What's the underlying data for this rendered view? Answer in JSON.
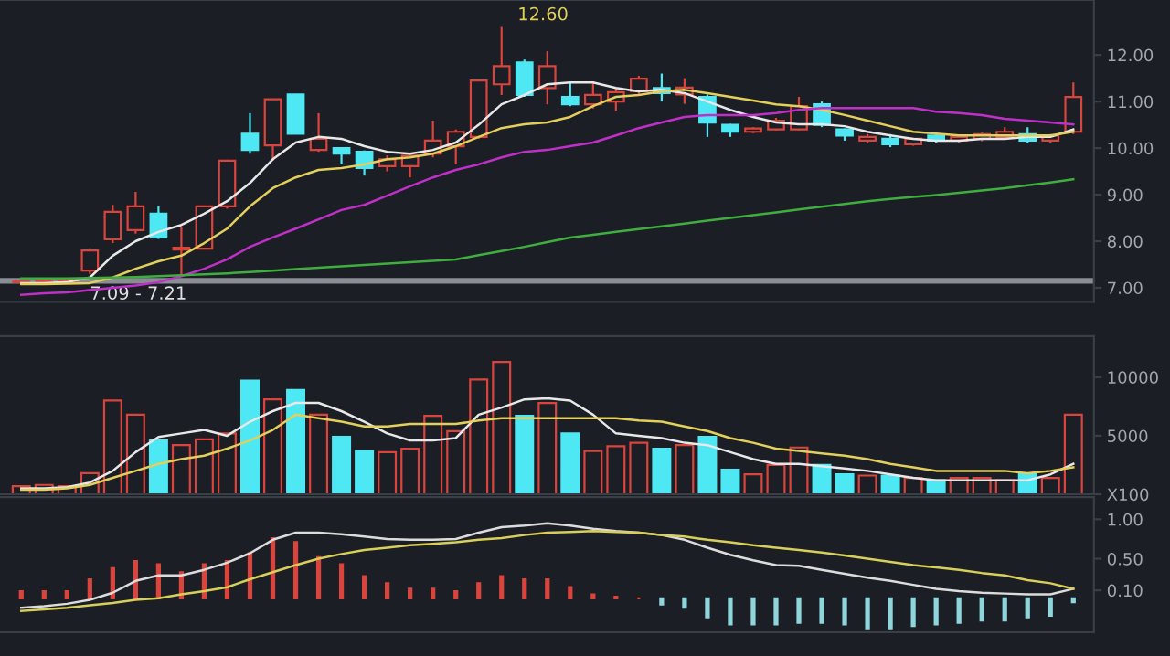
{
  "chart_data": [
    {
      "type": "candlestick",
      "categories": [
        null,
        null,
        null,
        null,
        null,
        null,
        null,
        null,
        null,
        null,
        null,
        null,
        null,
        null,
        null,
        null,
        null,
        null,
        null,
        null,
        null,
        null,
        null,
        null,
        null,
        null,
        null,
        null,
        null,
        null,
        null,
        null,
        null,
        null,
        null,
        null,
        null,
        null,
        null,
        null,
        null,
        null,
        null,
        null,
        null,
        null,
        null
      ],
      "ohlc": [
        [
          7.12,
          7.16,
          7.09,
          7.14
        ],
        [
          7.13,
          7.18,
          7.1,
          7.15
        ],
        [
          7.13,
          7.21,
          7.09,
          7.18
        ],
        [
          7.37,
          7.85,
          7.3,
          7.8
        ],
        [
          8.04,
          8.78,
          7.96,
          8.63
        ],
        [
          8.24,
          9.06,
          8.16,
          8.75
        ],
        [
          8.59,
          8.75,
          8.05,
          8.08
        ],
        [
          7.82,
          8.31,
          7.29,
          7.86
        ],
        [
          7.84,
          8.75,
          7.84,
          8.75
        ],
        [
          8.75,
          9.75,
          8.7,
          9.73
        ],
        [
          10.31,
          10.75,
          9.88,
          9.96
        ],
        [
          10.06,
          11.05,
          9.73,
          11.05
        ],
        [
          11.15,
          11.15,
          10.31,
          10.31
        ],
        [
          9.96,
          10.75,
          9.92,
          10.2
        ],
        [
          10.0,
          10.02,
          9.65,
          9.88
        ],
        [
          9.92,
          9.95,
          9.41,
          9.57
        ],
        [
          9.61,
          9.84,
          9.5,
          9.76
        ],
        [
          9.61,
          9.88,
          9.37,
          9.84
        ],
        [
          9.88,
          10.59,
          9.8,
          10.16
        ],
        [
          10.04,
          10.4,
          9.65,
          10.35
        ],
        [
          10.24,
          11.45,
          10.2,
          11.45
        ],
        [
          11.37,
          12.6,
          11.14,
          11.76
        ],
        [
          11.84,
          11.9,
          11.1,
          11.14
        ],
        [
          11.29,
          12.08,
          10.94,
          11.76
        ],
        [
          11.1,
          11.4,
          10.9,
          10.94
        ],
        [
          10.94,
          11.4,
          10.85,
          11.14
        ],
        [
          11.0,
          11.3,
          10.8,
          11.2
        ],
        [
          11.22,
          11.55,
          11.15,
          11.49
        ],
        [
          11.29,
          11.6,
          11.0,
          11.18
        ],
        [
          11.15,
          11.5,
          10.95,
          11.3
        ],
        [
          11.1,
          11.15,
          10.24,
          10.55
        ],
        [
          10.5,
          10.52,
          10.24,
          10.35
        ],
        [
          10.35,
          10.45,
          10.32,
          10.42
        ],
        [
          10.4,
          10.65,
          10.38,
          10.59
        ],
        [
          10.4,
          11.1,
          10.38,
          10.9
        ],
        [
          10.94,
          11.0,
          10.45,
          10.5
        ],
        [
          10.4,
          10.42,
          10.16,
          10.27
        ],
        [
          10.16,
          10.3,
          10.12,
          10.24
        ],
        [
          10.2,
          10.3,
          10.02,
          10.08
        ],
        [
          10.08,
          10.22,
          10.05,
          10.2
        ],
        [
          10.27,
          10.3,
          10.12,
          10.16
        ],
        [
          10.16,
          10.27,
          10.12,
          10.24
        ],
        [
          10.2,
          10.33,
          10.15,
          10.3
        ],
        [
          10.24,
          10.45,
          10.2,
          10.35
        ],
        [
          10.3,
          10.45,
          10.1,
          10.16
        ],
        [
          10.16,
          10.3,
          10.12,
          10.27
        ],
        [
          10.35,
          11.41,
          10.3,
          11.1
        ]
      ],
      "colors": [
        "#d9453d",
        "#d9453d",
        "#d9453d",
        "#d9453d",
        "#d9453d",
        "#d9453d",
        "#4de8f4",
        "#d9453d",
        "#d9453d",
        "#d9453d",
        "#4de8f4",
        "#d9453d",
        "#4de8f4",
        "#d9453d",
        "#4de8f4",
        "#4de8f4",
        "#d9453d",
        "#d9453d",
        "#d9453d",
        "#d9453d",
        "#d9453d",
        "#d9453d",
        "#4de8f4",
        "#d9453d",
        "#4de8f4",
        "#d9453d",
        "#d9453d",
        "#d9453d",
        "#4de8f4",
        "#d9453d",
        "#4de8f4",
        "#4de8f4",
        "#d9453d",
        "#d9453d",
        "#d9453d",
        "#4de8f4",
        "#4de8f4",
        "#d9453d",
        "#4de8f4",
        "#d9453d",
        "#4de8f4",
        "#d9453d",
        "#d9453d",
        "#d9453d",
        "#4de8f4",
        "#d9453d",
        "#d9453d"
      ],
      "series": [
        {
          "type": "line",
          "color": "#e8e8e8",
          "values": [
            7.1,
            7.1,
            7.12,
            7.22,
            7.69,
            8.0,
            8.2,
            8.35,
            8.59,
            8.86,
            9.25,
            9.76,
            10.12,
            10.24,
            10.2,
            10.04,
            9.92,
            9.88,
            9.96,
            10.12,
            10.5,
            10.94,
            11.14,
            11.37,
            11.41,
            11.41,
            11.29,
            11.22,
            11.25,
            11.18,
            11.0,
            10.82,
            10.67,
            10.55,
            10.51,
            10.51,
            10.47,
            10.35,
            10.27,
            10.2,
            10.16,
            10.16,
            10.2,
            10.2,
            10.24,
            10.24,
            10.4
          ]
        },
        {
          "type": "line",
          "color": "#e3cf5c",
          "values": [
            7.08,
            7.08,
            7.09,
            7.1,
            7.22,
            7.41,
            7.57,
            7.69,
            7.96,
            8.27,
            8.75,
            9.14,
            9.37,
            9.53,
            9.57,
            9.65,
            9.76,
            9.8,
            9.88,
            10.04,
            10.24,
            10.43,
            10.51,
            10.55,
            10.67,
            10.9,
            11.1,
            11.14,
            11.22,
            11.25,
            11.18,
            11.1,
            11.02,
            10.94,
            10.9,
            10.82,
            10.71,
            10.59,
            10.47,
            10.35,
            10.31,
            10.27,
            10.27,
            10.27,
            10.27,
            10.27,
            10.35
          ]
        },
        {
          "type": "line",
          "color": "#c030c8",
          "values": [
            6.85,
            6.88,
            6.9,
            6.95,
            7.0,
            7.05,
            7.12,
            7.25,
            7.41,
            7.61,
            7.88,
            8.08,
            8.27,
            8.47,
            8.67,
            8.78,
            8.98,
            9.18,
            9.37,
            9.53,
            9.65,
            9.8,
            9.92,
            9.96,
            10.04,
            10.12,
            10.27,
            10.43,
            10.55,
            10.67,
            10.71,
            10.71,
            10.71,
            10.75,
            10.82,
            10.86,
            10.86,
            10.86,
            10.86,
            10.86,
            10.78,
            10.75,
            10.71,
            10.63,
            10.59,
            10.55,
            10.51
          ]
        },
        {
          "type": "line",
          "color": "#3fae3f",
          "values": [
            7.2,
            7.2,
            7.2,
            7.21,
            7.22,
            7.23,
            7.25,
            7.27,
            7.29,
            7.31,
            7.34,
            7.37,
            7.4,
            7.43,
            7.46,
            7.49,
            7.52,
            7.55,
            7.58,
            7.61,
            7.7,
            7.79,
            7.88,
            7.98,
            8.08,
            8.14,
            8.2,
            8.26,
            8.32,
            8.38,
            8.44,
            8.5,
            8.56,
            8.62,
            8.68,
            8.74,
            8.8,
            8.86,
            8.91,
            8.95,
            8.99,
            9.04,
            9.09,
            9.14,
            9.2,
            9.26,
            9.33
          ]
        }
      ],
      "ylim": [
        6.7,
        13.18
      ],
      "yticks": [
        {
          "value": 7,
          "label": "7.00"
        },
        {
          "value": 8,
          "label": "8.00"
        },
        {
          "value": 9,
          "label": "9.00"
        },
        {
          "value": 10,
          "label": "10.00"
        },
        {
          "value": 11,
          "label": "11.00"
        },
        {
          "value": 12,
          "label": "12.00"
        }
      ],
      "tick_labels": "y",
      "bands": [
        {
          "axis": "y",
          "from": 7.09,
          "to": 7.21,
          "label": "7.09 - 7.21",
          "color": "#8a8d93"
        }
      ],
      "annotations": [
        "12.60"
      ]
    },
    {
      "type": "bar",
      "categories": [
        null,
        null,
        null,
        null,
        null,
        null,
        null,
        null,
        null,
        null,
        null,
        null,
        null,
        null,
        null,
        null,
        null,
        null,
        null,
        null,
        null,
        null,
        null,
        null,
        null,
        null,
        null,
        null,
        null,
        null,
        null,
        null,
        null,
        null,
        null,
        null,
        null,
        null,
        null,
        null,
        null,
        null,
        null,
        null,
        null,
        null,
        null
      ],
      "series": [
        {
          "type": "bar",
          "colors": [
            "#d9453d",
            "#d9453d",
            "#d9453d",
            "#d9453d",
            "#d9453d",
            "#d9453d",
            "#4de8f4",
            "#d9453d",
            "#d9453d",
            "#d9453d",
            "#4de8f4",
            "#d9453d",
            "#4de8f4",
            "#d9453d",
            "#4de8f4",
            "#4de8f4",
            "#d9453d",
            "#d9453d",
            "#d9453d",
            "#d9453d",
            "#d9453d",
            "#d9453d",
            "#4de8f4",
            "#d9453d",
            "#4de8f4",
            "#d9453d",
            "#d9453d",
            "#d9453d",
            "#4de8f4",
            "#d9453d",
            "#4de8f4",
            "#4de8f4",
            "#d9453d",
            "#d9453d",
            "#d9453d",
            "#4de8f4",
            "#4de8f4",
            "#d9453d",
            "#4de8f4",
            "#d9453d",
            "#4de8f4",
            "#d9453d",
            "#d9453d",
            "#d9453d",
            "#4de8f4",
            "#d9453d",
            "#d9453d"
          ],
          "values": [
            700,
            800,
            700,
            1800,
            8000,
            6800,
            4600,
            4200,
            4700,
            5200,
            9700,
            8100,
            8900,
            6800,
            4900,
            3700,
            3600,
            3900,
            6700,
            5400,
            9800,
            11300,
            6700,
            7800,
            5200,
            3700,
            4100,
            4400,
            3900,
            4200,
            4900,
            2100,
            1700,
            2500,
            4000,
            2500,
            1700,
            1600,
            1600,
            1400,
            1200,
            1400,
            1400,
            1200,
            1700,
            1400,
            6800
          ]
        },
        {
          "type": "line",
          "color": "#e8e8e8",
          "values": [
            500,
            500,
            600,
            1000,
            2000,
            3600,
            4900,
            5200,
            5500,
            5000,
            6200,
            7100,
            7800,
            7800,
            7100,
            6200,
            5200,
            4600,
            4600,
            4800,
            6800,
            7400,
            8100,
            8200,
            8000,
            6800,
            5200,
            5000,
            4800,
            4400,
            4200,
            3600,
            3000,
            2600,
            2600,
            2400,
            2200,
            2000,
            1700,
            1400,
            1200,
            1200,
            1200,
            1200,
            1200,
            1700,
            2600
          ]
        },
        {
          "type": "line",
          "color": "#e3cf5c",
          "values": [
            400,
            400,
            500,
            800,
            1400,
            2000,
            2600,
            3000,
            3300,
            3900,
            4600,
            5500,
            6800,
            6500,
            6200,
            5800,
            5800,
            6000,
            6000,
            6000,
            6300,
            6500,
            6500,
            6500,
            6500,
            6500,
            6500,
            6300,
            6200,
            5800,
            5400,
            4800,
            4400,
            3900,
            3700,
            3500,
            3300,
            3000,
            2600,
            2300,
            2000,
            2000,
            2000,
            2000,
            1800,
            2000,
            2300
          ]
        }
      ],
      "ylim": [
        0,
        13500
      ],
      "yticks": [
        {
          "value": 0,
          "label": "X100"
        },
        5000,
        10000
      ],
      "tick_labels": "y"
    },
    {
      "type": "bar",
      "categories": [
        null,
        null,
        null,
        null,
        null,
        null,
        null,
        null,
        null,
        null,
        null,
        null,
        null,
        null,
        null,
        null,
        null,
        null,
        null,
        null,
        null,
        null,
        null,
        null,
        null,
        null,
        null,
        null,
        null,
        null,
        null,
        null,
        null,
        null,
        null,
        null,
        null,
        null,
        null,
        null,
        null,
        null,
        null,
        null,
        null,
        null,
        null
      ],
      "series": [
        {
          "type": "bar",
          "colors": [
            "#d9453d",
            "#d9453d",
            "#d9453d",
            "#d9453d",
            "#d9453d",
            "#d9453d",
            "#d9453d",
            "#d9453d",
            "#d9453d",
            "#d9453d",
            "#d9453d",
            "#d9453d",
            "#d9453d",
            "#d9453d",
            "#d9453d",
            "#d9453d",
            "#d9453d",
            "#d9453d",
            "#d9453d",
            "#d9453d",
            "#d9453d",
            "#d9453d",
            "#d9453d",
            "#d9453d",
            "#d9453d",
            "#d9453d",
            "#d9453d",
            "#d9453d",
            "#8fd6dc",
            "#8fd6dc",
            "#8fd6dc",
            "#8fd6dc",
            "#8fd6dc",
            "#8fd6dc",
            "#8fd6dc",
            "#8fd6dc",
            "#8fd6dc",
            "#8fd6dc",
            "#8fd6dc",
            "#8fd6dc",
            "#8fd6dc",
            "#8fd6dc",
            "#8fd6dc",
            "#8fd6dc",
            "#8fd6dc",
            "#8fd6dc",
            "#8fd6dc"
          ],
          "values": [
            0.09,
            0.09,
            0.09,
            0.24,
            0.38,
            0.47,
            0.43,
            0.33,
            0.43,
            0.47,
            0.57,
            0.76,
            0.71,
            0.52,
            0.43,
            0.28,
            0.19,
            0.12,
            0.12,
            0.09,
            0.19,
            0.28,
            0.24,
            0.24,
            0.14,
            0.05,
            0.02,
            0,
            -0.08,
            -0.12,
            -0.24,
            -0.33,
            -0.33,
            -0.33,
            -0.31,
            -0.31,
            -0.33,
            -0.38,
            -0.38,
            -0.35,
            -0.33,
            -0.31,
            -0.28,
            -0.28,
            -0.24,
            -0.22,
            -0.05
          ]
        },
        {
          "type": "line",
          "color": "#dcdcdc",
          "values": [
            -0.12,
            -0.1,
            -0.07,
            -0.02,
            0.07,
            0.22,
            0.29,
            0.29,
            0.36,
            0.45,
            0.57,
            0.74,
            0.83,
            0.83,
            0.81,
            0.78,
            0.75,
            0.74,
            0.74,
            0.75,
            0.83,
            0.9,
            0.92,
            0.95,
            0.92,
            0.88,
            0.85,
            0.83,
            0.8,
            0.74,
            0.64,
            0.55,
            0.48,
            0.42,
            0.41,
            0.36,
            0.31,
            0.26,
            0.22,
            0.17,
            0.12,
            0.09,
            0.07,
            0.06,
            0.05,
            0.05,
            0.12
          ]
        },
        {
          "type": "line",
          "color": "#d8cf5a",
          "values": [
            -0.16,
            -0.14,
            -0.12,
            -0.09,
            -0.06,
            -0.02,
            0.0,
            0.05,
            0.09,
            0.14,
            0.24,
            0.33,
            0.42,
            0.5,
            0.56,
            0.61,
            0.64,
            0.67,
            0.69,
            0.71,
            0.74,
            0.76,
            0.8,
            0.83,
            0.84,
            0.85,
            0.84,
            0.83,
            0.8,
            0.78,
            0.74,
            0.71,
            0.67,
            0.64,
            0.61,
            0.58,
            0.54,
            0.5,
            0.46,
            0.42,
            0.39,
            0.36,
            0.32,
            0.29,
            0.23,
            0.19,
            0.12
          ]
        }
      ],
      "ylim": [
        -0.43,
        1.28
      ],
      "yticks": [
        {
          "value": 0.1,
          "label": "0.10"
        },
        {
          "value": 0.5,
          "label": "0.50"
        },
        {
          "value": 1,
          "label": "1.00"
        }
      ],
      "tick_labels": "y"
    }
  ]
}
